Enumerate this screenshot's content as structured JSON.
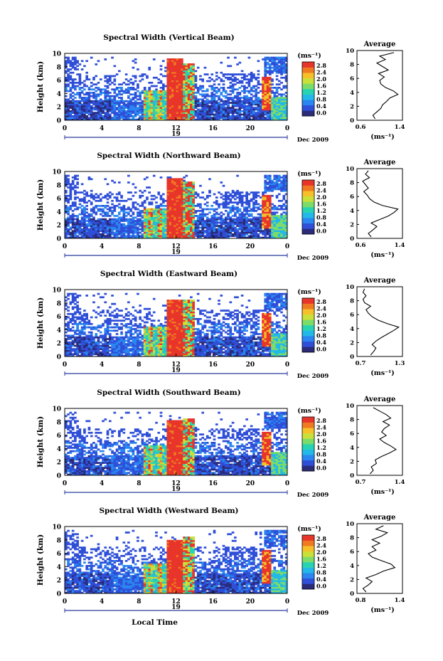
{
  "figure": {
    "xlabel": "Local Time",
    "avg_title": "Average",
    "cbar_unit": "(ms⁻¹)",
    "avg_unit": "(ms⁻¹)",
    "ylabel": "Height (km)",
    "date_label": "Dec 2009",
    "day_label": "19",
    "x_ticks": [
      "0",
      "4",
      "8",
      "12",
      "16",
      "20",
      "0"
    ],
    "y_ticks": [
      "0",
      "2",
      "4",
      "6",
      "8",
      "10"
    ],
    "cbar_ticks": [
      "0.0",
      "0.4",
      "0.8",
      "1.2",
      "1.6",
      "2.0",
      "2.4",
      "2.8"
    ],
    "colormap": [
      "#2b2b7a",
      "#2f4fd8",
      "#2a86f0",
      "#22b8e8",
      "#27d3b0",
      "#7cdc6a",
      "#c9e03a",
      "#f5c02a",
      "#f07a22",
      "#e8352a"
    ]
  },
  "chart_data": [
    {
      "type": "heatmap",
      "title": "Spectral Width (Vertical Beam)",
      "x_range_local_time_h": [
        0,
        24
      ],
      "ylim_km": [
        0,
        10
      ],
      "color_range": [
        0.0,
        2.8
      ],
      "avg_profile": {
        "title": "Average",
        "xlim": [
          0.6,
          1.4
        ],
        "x_ticks": [
          "0.6",
          "1.4"
        ],
        "height_km": [
          0.2,
          0.7,
          1.2,
          1.7,
          2.2,
          2.7,
          3.2,
          3.7,
          4.2,
          4.7,
          5.2,
          5.7,
          6.2,
          6.7,
          7.2,
          7.7,
          8.2,
          8.7,
          9.2,
          9.7
        ],
        "value": [
          0.92,
          0.88,
          0.95,
          1.02,
          1.05,
          1.12,
          1.18,
          1.32,
          1.24,
          1.1,
          1.02,
          1.0,
          1.08,
          0.98,
          1.15,
          1.05,
          0.95,
          1.1,
          1.0,
          1.25
        ]
      }
    },
    {
      "type": "heatmap",
      "title": "Spectral Width (Northward Beam)",
      "x_range_local_time_h": [
        0,
        24
      ],
      "ylim_km": [
        0,
        10
      ],
      "color_range": [
        0.0,
        2.8
      ],
      "avg_profile": {
        "title": "Average",
        "xlim": [
          0.6,
          1.4
        ],
        "x_ticks": [
          "0.6",
          "1.4"
        ],
        "height_km": [
          0.2,
          0.7,
          1.2,
          1.7,
          2.2,
          2.7,
          3.2,
          3.7,
          4.2,
          4.7,
          5.2,
          5.7,
          6.2,
          6.7,
          7.2,
          7.7,
          8.2,
          8.7,
          9.2,
          9.7
        ],
        "value": [
          0.85,
          0.8,
          0.88,
          0.95,
          0.85,
          1.0,
          1.15,
          1.25,
          1.32,
          1.05,
          0.9,
          0.82,
          0.78,
          0.72,
          0.8,
          0.75,
          0.7,
          0.82,
          0.75,
          0.8
        ]
      }
    },
    {
      "type": "heatmap",
      "title": "Spectral Width (Eastward Beam)",
      "x_range_local_time_h": [
        0,
        24
      ],
      "ylim_km": [
        0,
        10
      ],
      "color_range": [
        0.0,
        2.8
      ],
      "avg_profile": {
        "title": "Average",
        "xlim": [
          0.7,
          1.3
        ],
        "x_ticks": [
          "0.7",
          "1.3"
        ],
        "height_km": [
          0.2,
          0.7,
          1.2,
          1.7,
          2.2,
          2.7,
          3.2,
          3.7,
          4.2,
          4.7,
          5.2,
          5.7,
          6.2,
          6.7,
          7.2,
          7.7,
          8.2,
          8.7,
          9.2,
          9.7
        ],
        "value": [
          0.88,
          0.92,
          0.95,
          0.9,
          0.95,
          1.02,
          1.1,
          1.18,
          1.25,
          1.1,
          0.98,
          0.9,
          0.85,
          0.82,
          0.88,
          0.8,
          0.78,
          0.82,
          0.78,
          0.8
        ]
      }
    },
    {
      "type": "heatmap",
      "title": "Spectral Width (Southward Beam)",
      "x_range_local_time_h": [
        0,
        24
      ],
      "ylim_km": [
        0,
        10
      ],
      "color_range": [
        0.0,
        2.8
      ],
      "avg_profile": {
        "title": "Average",
        "xlim": [
          0.7,
          1.4
        ],
        "x_ticks": [
          "0.7",
          "1.4"
        ],
        "height_km": [
          0.2,
          0.7,
          1.2,
          1.7,
          2.2,
          2.7,
          3.2,
          3.7,
          4.2,
          4.7,
          5.2,
          5.7,
          6.2,
          6.7,
          7.2,
          7.7,
          8.2,
          8.7,
          9.2,
          9.7
        ],
        "value": [
          0.9,
          0.95,
          0.92,
          1.0,
          0.98,
          1.08,
          1.2,
          1.3,
          1.22,
          1.12,
          1.05,
          1.15,
          1.08,
          1.12,
          1.2,
          1.1,
          1.22,
          1.15,
          1.05,
          0.95
        ]
      }
    },
    {
      "type": "heatmap",
      "title": "Spectral Width (Westward Beam)",
      "x_range_local_time_h": [
        0,
        24
      ],
      "ylim_km": [
        0,
        10
      ],
      "color_range": [
        0.0,
        2.8
      ],
      "avg_profile": {
        "title": "Average",
        "xlim": [
          0.8,
          1.4
        ],
        "x_ticks": [
          "0.8",
          "1.4"
        ],
        "height_km": [
          0.2,
          0.7,
          1.2,
          1.7,
          2.2,
          2.7,
          3.2,
          3.7,
          4.2,
          4.7,
          5.2,
          5.7,
          6.2,
          6.7,
          7.2,
          7.7,
          8.2,
          8.7,
          9.2,
          9.7
        ],
        "value": [
          0.92,
          0.88,
          0.95,
          1.0,
          0.92,
          1.05,
          1.15,
          1.3,
          1.25,
          1.12,
          1.0,
          0.95,
          1.05,
          1.0,
          1.1,
          1.0,
          1.12,
          1.2,
          1.05,
          1.15
        ]
      }
    }
  ]
}
